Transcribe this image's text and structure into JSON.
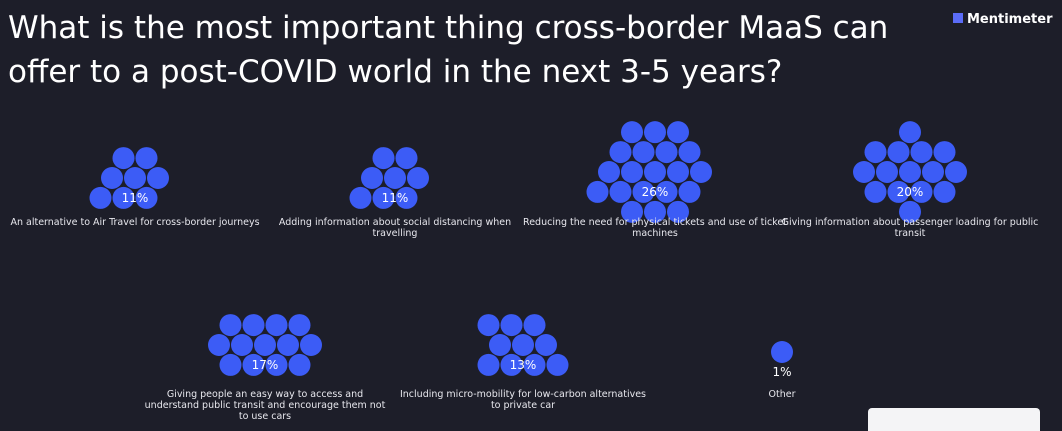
{
  "header": {
    "brand": "Mentimeter"
  },
  "chart_data": {
    "type": "bubble-cluster",
    "title": "What is the most important thing cross-border MaaS can offer to a post-COVID world in the next 3-5 years?",
    "color": "#3c5cf6",
    "categories": [
      "An alternative to Air Travel for cross-border journeys",
      "Adding information about social distancing when travelling",
      "Reducing the need for physical tickets and use of ticket machines",
      "Giving information about passenger loading for public transit",
      "Giving people an easy way to access and understand public transit and encourage them not to use cars",
      "Including micro-mobility for low-carbon alternatives to private car",
      "Other"
    ],
    "values": [
      11,
      11,
      26,
      20,
      17,
      13,
      1
    ],
    "value_labels": [
      "11%",
      "11%",
      "26%",
      "20%",
      "17%",
      "13%",
      "1%"
    ]
  }
}
